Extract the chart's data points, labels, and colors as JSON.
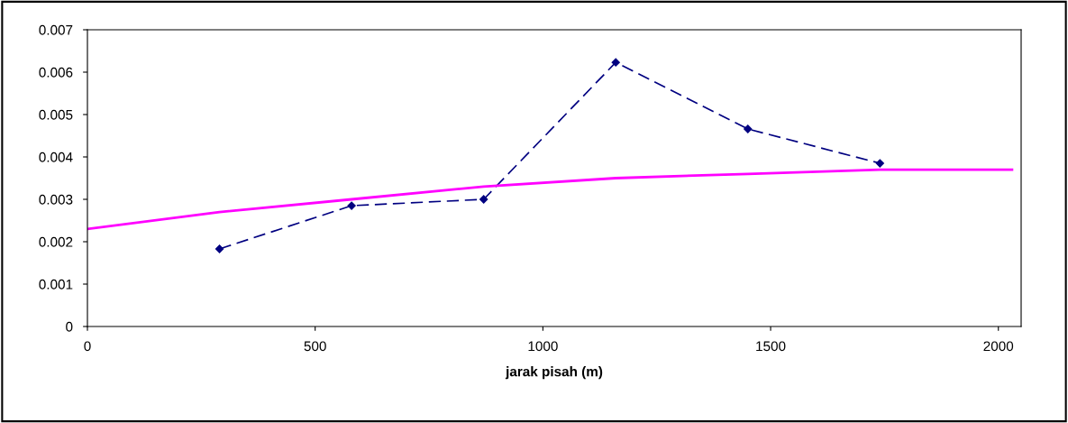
{
  "chart_data": {
    "type": "line",
    "xlabel": "jarak pisah (m)",
    "xlim": [
      0,
      2050
    ],
    "xticks": [
      0,
      500,
      1000,
      1500,
      2000
    ],
    "ylim": [
      0,
      0.007
    ],
    "yticks": [
      0,
      0.001,
      0.002,
      0.003,
      0.004,
      0.005,
      0.006,
      0.007
    ],
    "grid": false,
    "legend": false,
    "series": [
      {
        "color": "#000080",
        "marker": "diamond",
        "line_style": "dashed",
        "x": [
          290,
          580,
          870,
          1160,
          1450,
          1740
        ],
        "values": [
          0.00183,
          0.00285,
          0.003,
          0.00623,
          0.00466,
          0.00385
        ]
      },
      {
        "color": "#ff00ff",
        "marker": "none",
        "line_style": "solid",
        "x": [
          0,
          290,
          580,
          870,
          1160,
          1450,
          1740,
          2030
        ],
        "values": [
          0.0023,
          0.0027,
          0.003,
          0.0033,
          0.0035,
          0.0036,
          0.0037,
          0.0037
        ]
      }
    ]
  }
}
